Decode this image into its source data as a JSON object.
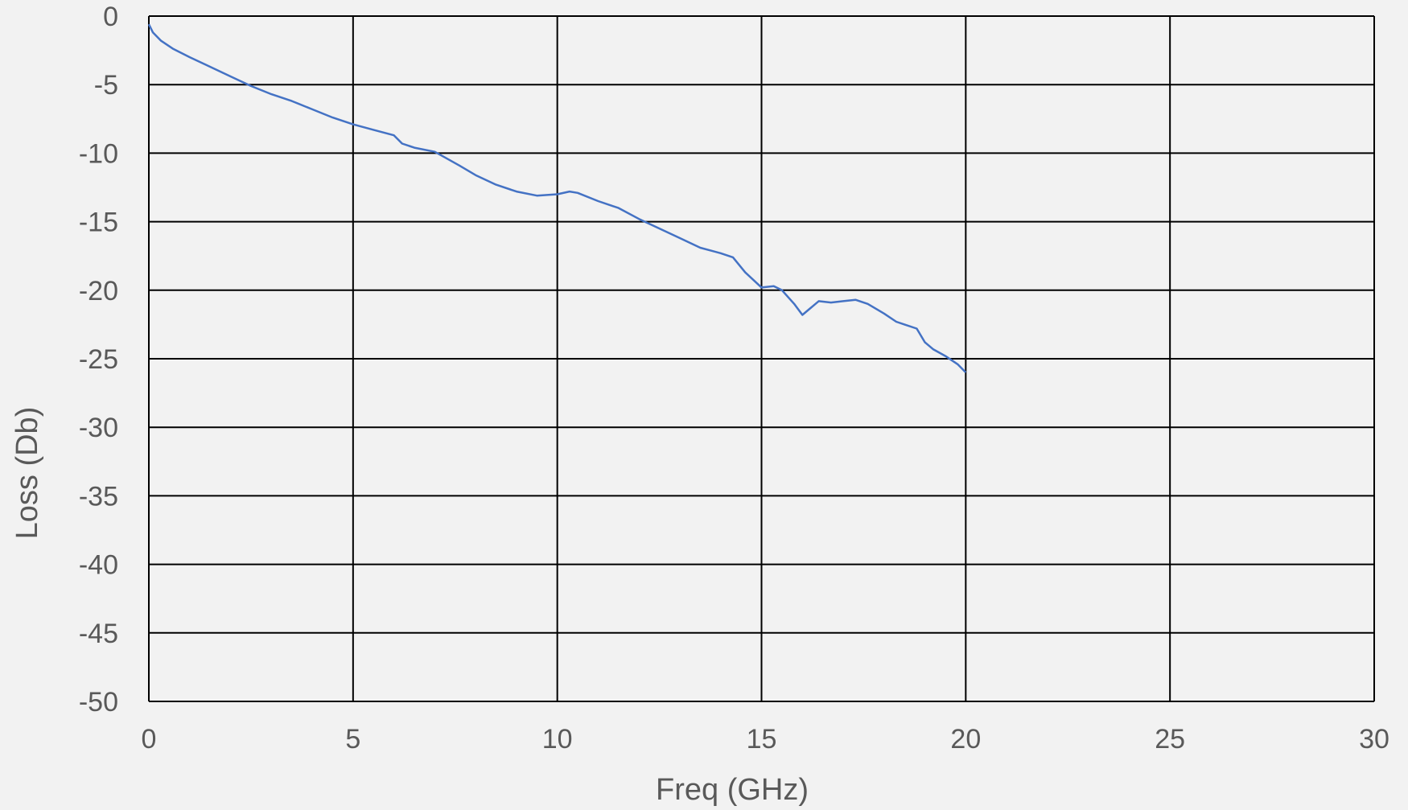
{
  "chart_data": {
    "type": "line",
    "title": "",
    "xlabel": "Freq (GHz)",
    "ylabel": "Loss (Db)",
    "xlim": [
      0,
      30
    ],
    "ylim": [
      -50,
      0
    ],
    "x_ticks": [
      0,
      5,
      10,
      15,
      20,
      25,
      30
    ],
    "y_ticks": [
      0,
      -5,
      -10,
      -15,
      -20,
      -25,
      -30,
      -35,
      -40,
      -45,
      -50
    ],
    "grid": true,
    "legend": "none",
    "colors": {
      "line": "#4472c4",
      "grid": "#000000",
      "background": "#f2f2f2",
      "text": "#595959"
    },
    "series": [
      {
        "x": [
          0,
          0.1,
          0.3,
          0.6,
          1.0,
          1.5,
          2.0,
          2.5,
          3.0,
          3.5,
          4.0,
          4.5,
          5.0,
          5.5,
          6.0,
          6.2,
          6.5,
          7.0,
          7.3,
          7.6,
          8.0,
          8.5,
          9.0,
          9.5,
          10.0,
          10.3,
          10.5,
          11.0,
          11.5,
          12.0,
          12.5,
          13.0,
          13.5,
          14.0,
          14.3,
          14.6,
          15.0,
          15.3,
          15.5,
          15.8,
          16.0,
          16.2,
          16.4,
          16.7,
          17.0,
          17.3,
          17.6,
          18.0,
          18.3,
          18.5,
          18.8,
          19.0,
          19.2,
          19.5,
          19.8,
          20.0
        ],
        "y": [
          -0.6,
          -1.2,
          -1.8,
          -2.4,
          -3.0,
          -3.7,
          -4.4,
          -5.1,
          -5.7,
          -6.2,
          -6.8,
          -7.4,
          -7.9,
          -8.3,
          -8.7,
          -9.3,
          -9.6,
          -9.9,
          -10.4,
          -10.9,
          -11.6,
          -12.3,
          -12.8,
          -13.1,
          -13.0,
          -12.8,
          -12.9,
          -13.5,
          -14.0,
          -14.8,
          -15.5,
          -16.2,
          -16.9,
          -17.3,
          -17.6,
          -18.7,
          -19.8,
          -19.7,
          -20.0,
          -21.0,
          -21.8,
          -21.3,
          -20.8,
          -20.9,
          -20.8,
          -20.7,
          -21.0,
          -21.7,
          -22.3,
          -22.5,
          -22.8,
          -23.8,
          -24.3,
          -24.8,
          -25.4,
          -26.0
        ]
      }
    ]
  }
}
